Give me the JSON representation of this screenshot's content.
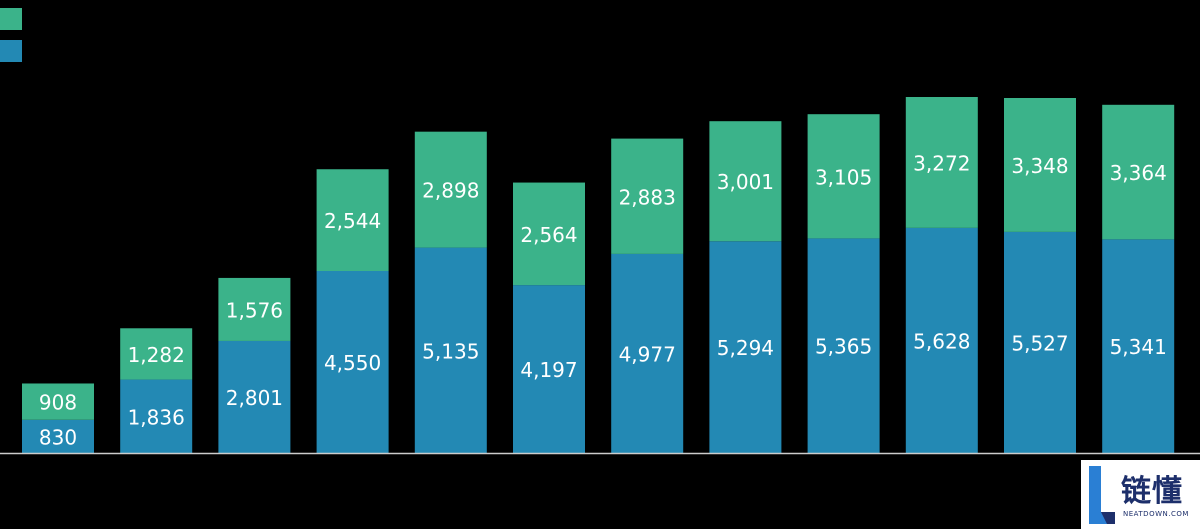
{
  "chart_data": {
    "type": "bar",
    "stacked": true,
    "categories": [
      "",
      "",
      "",
      "",
      "",
      "",
      "",
      "",
      "",
      "",
      "",
      ""
    ],
    "series": [
      {
        "values": [
          830,
          1836,
          2801,
          4550,
          5135,
          4197,
          4977,
          5294,
          5365,
          5628,
          5527,
          5341
        ],
        "color": "#2389b4"
      },
      {
        "values": [
          908,
          1282,
          1576,
          2544,
          2898,
          2564,
          2883,
          3001,
          3105,
          3272,
          3348,
          3364
        ],
        "color": "#3bb38a"
      }
    ],
    "value_labels": [
      [
        "830",
        "1,836",
        "2,801",
        "4,550",
        "5,135",
        "4,197",
        "4,977",
        "5,294",
        "5,365",
        "5,628",
        "5,527",
        "5,341"
      ],
      [
        "908",
        "1,282",
        "1,576",
        "2,544",
        "2,898",
        "2,564",
        "2,883",
        "3,001",
        "3,105",
        "3,272",
        "3,348",
        "3,364"
      ]
    ],
    "legend": {
      "placement": "top-left",
      "entries": [
        "",
        ""
      ]
    },
    "ylim": [
      0,
      9000
    ],
    "grid": false,
    "colors": {
      "background": "#000000",
      "axis": "#cccccc",
      "label": "#ffffff"
    }
  },
  "watermark": {
    "name_cn": "链懂",
    "name_en": "NEATDOWN.COM"
  }
}
